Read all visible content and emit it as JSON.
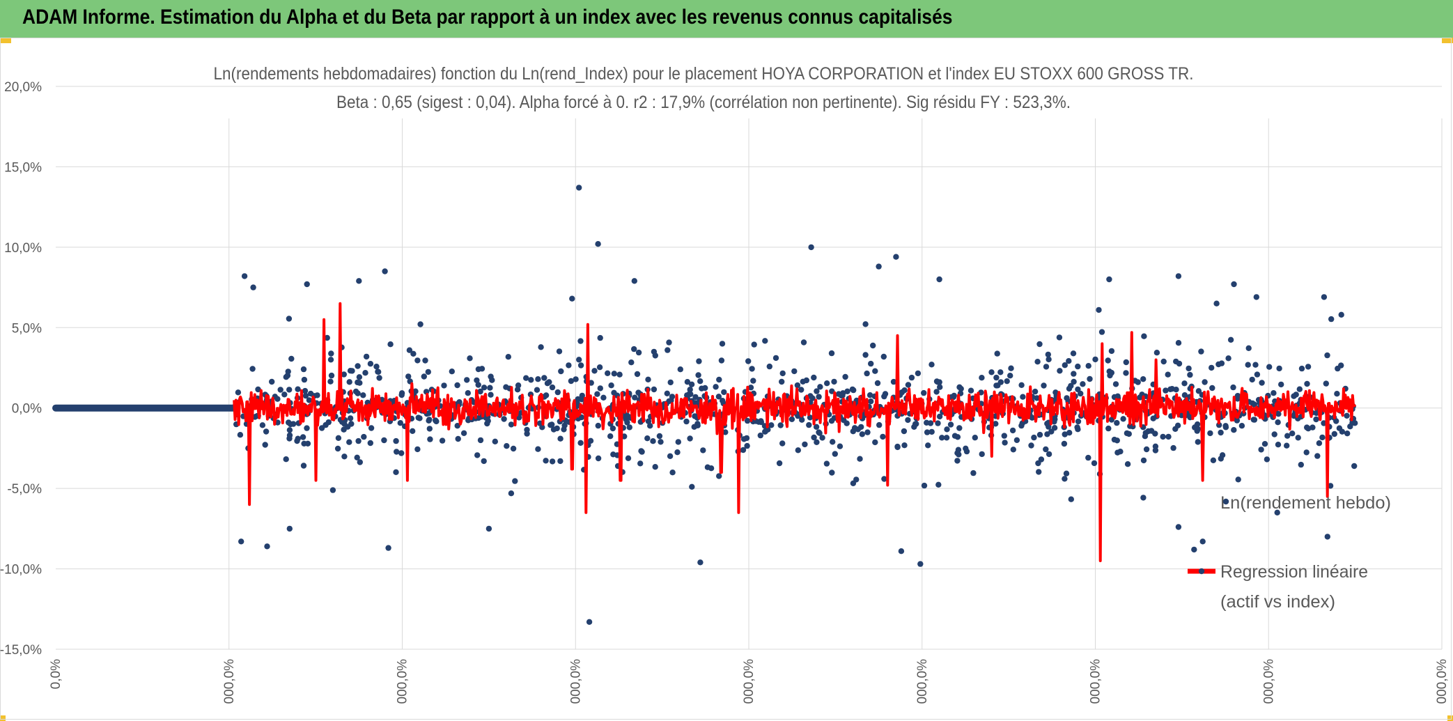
{
  "header": {
    "title": "ADAM Informe. Estimation du Alpha et du Beta par rapport à un index avec les revenus connus capitalisés"
  },
  "colors": {
    "banner": "#7dc77a",
    "scatter": "#24406e",
    "regression": "#ff0000",
    "grid": "#d9d9d9",
    "text": "#595959"
  },
  "chart_data": {
    "type": "scatter",
    "title": "Ln(rendements hebdomadaires) fonction du Ln(rend_Index) pour le placement HOYA CORPORATION et l'index EU STOXX 600 GROSS TR.",
    "subtitle": "Beta : 0,65 (sigest : 0,04). Alpha forcé à 0. r2 : 17,9% (corrélation non pertinente). Sig résidu FY : 523,3%.",
    "y_ticks": [
      "20,0%",
      "15,0%",
      "10,0%",
      "5,0%",
      "0,0%",
      "-5,0%",
      "-10,0%",
      "-15,0%"
    ],
    "x_ticks": [
      "0,0%",
      "000,0%",
      "000,0%",
      "000,0%",
      "000,0%",
      "000,0%",
      "000,0%",
      "000,0%",
      "000,0%"
    ],
    "ylim": [
      -0.15,
      0.2
    ],
    "xlim": [
      0,
      8
    ],
    "grid": true,
    "legend_position": "right",
    "series": [
      {
        "name": "Ln(rendement hebdo)",
        "marker": "dot",
        "leading_zero_segment": [
          0,
          1.03
        ],
        "x_range": [
          1.03,
          7.5
        ],
        "approx_count": 1250,
        "spread": 0.03,
        "outliers": [
          [
            1.09,
            0.082
          ],
          [
            1.14,
            0.075
          ],
          [
            1.22,
            -0.086
          ],
          [
            1.07,
            -0.083
          ],
          [
            1.45,
            0.077
          ],
          [
            1.75,
            0.079
          ],
          [
            1.9,
            0.085
          ],
          [
            1.92,
            -0.087
          ],
          [
            2.98,
            0.068
          ],
          [
            3.02,
            0.137
          ],
          [
            3.13,
            0.102
          ],
          [
            3.08,
            -0.133
          ],
          [
            3.34,
            0.079
          ],
          [
            3.72,
            -0.096
          ],
          [
            4.36,
            0.1
          ],
          [
            4.75,
            0.088
          ],
          [
            4.85,
            0.094
          ],
          [
            4.99,
            -0.097
          ],
          [
            4.88,
            -0.089
          ],
          [
            5.1,
            0.08
          ],
          [
            6.08,
            0.08
          ],
          [
            6.02,
            0.061
          ],
          [
            6.48,
            0.082
          ],
          [
            6.62,
            -0.083
          ],
          [
            6.57,
            -0.088
          ],
          [
            6.7,
            0.065
          ],
          [
            6.8,
            0.077
          ],
          [
            6.93,
            0.069
          ],
          [
            7.32,
            0.069
          ],
          [
            7.34,
            -0.08
          ],
          [
            7.42,
            0.058
          ],
          [
            7.05,
            -0.065
          ],
          [
            6.48,
            -0.074
          ],
          [
            1.35,
            -0.075
          ],
          [
            2.5,
            -0.075
          ]
        ]
      },
      {
        "name": "Regression linéaire",
        "name_line2": "(actif vs index)",
        "marker": "line",
        "x_range": [
          1.03,
          7.5
        ],
        "spikes": [
          [
            1.12,
            -0.06
          ],
          [
            1.55,
            0.055
          ],
          [
            1.64,
            0.065
          ],
          [
            1.5,
            -0.045
          ],
          [
            2.03,
            -0.045
          ],
          [
            3.07,
            0.052
          ],
          [
            3.06,
            -0.065
          ],
          [
            3.26,
            -0.045
          ],
          [
            3.94,
            -0.065
          ],
          [
            4.86,
            0.045
          ],
          [
            4.8,
            -0.048
          ],
          [
            6.03,
            -0.095
          ],
          [
            6.04,
            0.04
          ],
          [
            6.21,
            0.047
          ],
          [
            6.62,
            -0.045
          ],
          [
            7.34,
            -0.055
          ],
          [
            2.98,
            -0.038
          ],
          [
            5.4,
            -0.03
          ],
          [
            6.35,
            0.03
          ],
          [
            3.84,
            -0.04
          ]
        ]
      }
    ]
  }
}
